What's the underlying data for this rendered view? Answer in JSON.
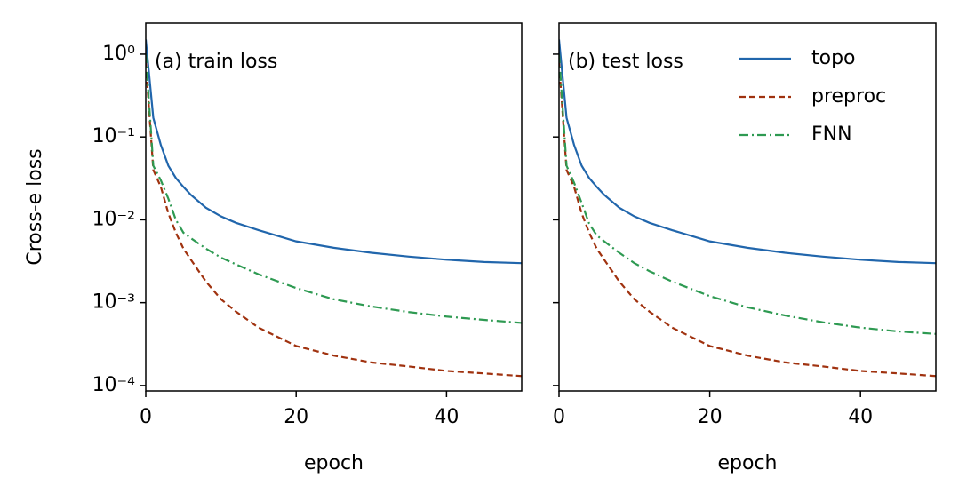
{
  "chart_data": [
    {
      "type": "line",
      "annotation": "(a) train loss",
      "ylabel": "Cross-e loss",
      "xlabel": "epoch",
      "log_y": true,
      "xlim": [
        0,
        50
      ],
      "xticks": [
        0,
        20,
        40
      ],
      "ylim": [
        8.6e-05,
        2.37
      ],
      "yticks": [
        {
          "value": 1,
          "label": "10⁰"
        },
        {
          "value": 0.1,
          "label": "10⁻¹"
        },
        {
          "value": 0.01,
          "label": "10⁻²"
        },
        {
          "value": 0.001,
          "label": "10⁻³"
        },
        {
          "value": 0.0001,
          "label": "10⁻⁴"
        }
      ],
      "x": [
        0,
        1,
        2,
        3,
        4,
        5,
        6,
        8,
        10,
        12,
        15,
        20,
        25,
        30,
        35,
        40,
        45,
        50
      ],
      "series": [
        {
          "name": "topo",
          "color": "#2166ac",
          "dash": "solid",
          "values": [
            1.5,
            0.17,
            0.08,
            0.045,
            0.032,
            0.025,
            0.02,
            0.014,
            0.011,
            0.0092,
            0.0075,
            0.0055,
            0.0046,
            0.004,
            0.0036,
            0.0033,
            0.0031,
            0.003
          ]
        },
        {
          "name": "preproc",
          "color": "#a0320f",
          "dash": "dashed",
          "values": [
            0.8,
            0.04,
            0.025,
            0.012,
            0.007,
            0.0045,
            0.0033,
            0.0018,
            0.0011,
            0.00078,
            0.0005,
            0.0003,
            0.00023,
            0.00019,
            0.00017,
            0.00015,
            0.00014,
            0.00013
          ]
        },
        {
          "name": "FNN",
          "color": "#2e9a52",
          "dash": "dashdot",
          "values": [
            1.0,
            0.045,
            0.03,
            0.018,
            0.01,
            0.007,
            0.006,
            0.0045,
            0.0035,
            0.0029,
            0.0022,
            0.0015,
            0.0011,
            0.0009,
            0.00077,
            0.00068,
            0.00062,
            0.00057
          ]
        }
      ]
    },
    {
      "type": "line",
      "annotation": "(b) test loss",
      "xlabel": "epoch",
      "log_y": true,
      "xlim": [
        0,
        50
      ],
      "xticks": [
        0,
        20,
        40
      ],
      "ylim": [
        8.6e-05,
        2.37
      ],
      "yticks": [
        1,
        0.1,
        0.01,
        0.001,
        0.0001
      ],
      "legend": "upper right",
      "x": [
        0,
        1,
        2,
        3,
        4,
        5,
        6,
        8,
        10,
        12,
        15,
        20,
        25,
        30,
        35,
        40,
        45,
        50
      ],
      "series": [
        {
          "name": "topo",
          "color": "#2166ac",
          "dash": "solid",
          "values": [
            1.5,
            0.17,
            0.08,
            0.045,
            0.032,
            0.025,
            0.02,
            0.014,
            0.011,
            0.0092,
            0.0075,
            0.0055,
            0.0046,
            0.004,
            0.0036,
            0.0033,
            0.0031,
            0.003
          ]
        },
        {
          "name": "preproc",
          "color": "#a0320f",
          "dash": "dashed",
          "values": [
            0.8,
            0.04,
            0.025,
            0.012,
            0.007,
            0.0045,
            0.0033,
            0.0018,
            0.0011,
            0.00078,
            0.0005,
            0.0003,
            0.00023,
            0.00019,
            0.00017,
            0.00015,
            0.00014,
            0.00013
          ]
        },
        {
          "name": "FNN",
          "color": "#2e9a52",
          "dash": "dashdot",
          "values": [
            1.0,
            0.045,
            0.028,
            0.016,
            0.009,
            0.0065,
            0.0055,
            0.004,
            0.003,
            0.0024,
            0.0018,
            0.0012,
            0.00088,
            0.0007,
            0.00058,
            0.0005,
            0.00045,
            0.00042
          ]
        }
      ]
    }
  ]
}
